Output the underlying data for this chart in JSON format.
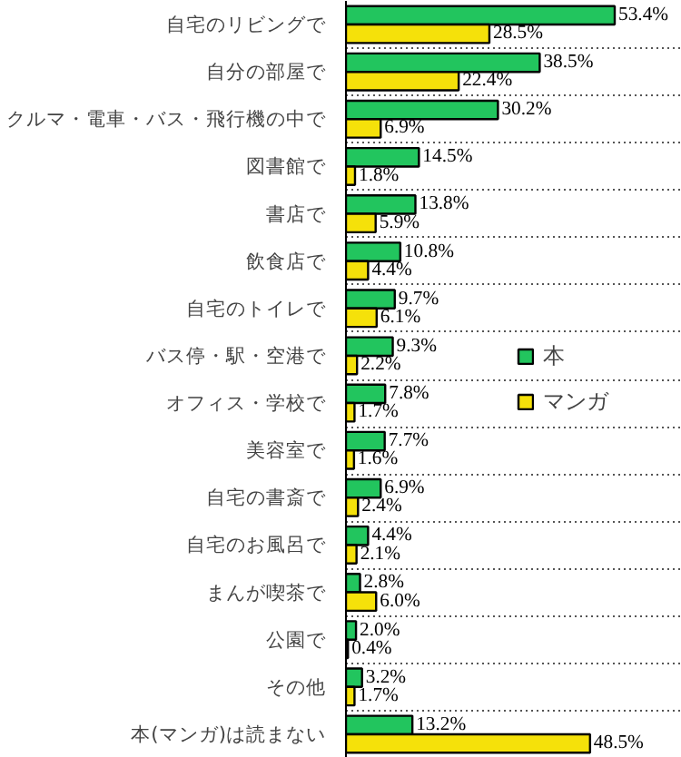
{
  "chart_data": {
    "type": "bar",
    "orientation": "horizontal",
    "categories": [
      "自宅のリビングで",
      "自分の部屋で",
      "クルマ・電車・バス・飛行機の中で",
      "図書館で",
      "書店で",
      "飲食店で",
      "自宅のトイレで",
      "バス停・駅・空港で",
      "オフィス・学校で",
      "美容室で",
      "自宅の書斎で",
      "自宅のお風呂で",
      "まんが喫茶で",
      "公園で",
      "その他",
      "本(マンガ)は読まない"
    ],
    "series": [
      {
        "name": "本",
        "color": "#22c55e",
        "values": [
          53.4,
          38.5,
          30.2,
          14.5,
          13.8,
          10.8,
          9.7,
          9.3,
          7.8,
          7.7,
          6.9,
          4.4,
          2.8,
          2.0,
          3.2,
          13.2
        ],
        "value_labels": [
          "53.4%",
          "38.5%",
          "30.2%",
          "14.5%",
          "13.8%",
          "10.8%",
          "9.7%",
          "9.3%",
          "7.8%",
          "7.7%",
          "6.9%",
          "4.4%",
          "2.8%",
          "2.0%",
          "3.2%",
          "13.2%"
        ]
      },
      {
        "name": "マンガ",
        "color": "#f5e10a",
        "values": [
          28.5,
          22.4,
          6.9,
          1.8,
          5.9,
          4.4,
          6.1,
          2.2,
          1.7,
          1.6,
          2.4,
          2.1,
          6.0,
          0.4,
          1.7,
          48.5
        ],
        "value_labels": [
          "28.5%",
          "22.4%",
          "6.9%",
          "1.8%",
          "5.9%",
          "4.4%",
          "6.1%",
          "2.2%",
          "1.7%",
          "1.6%",
          "2.4%",
          "2.1%",
          "6.0%",
          "0.4%",
          "1.7%",
          "48.5%"
        ]
      }
    ],
    "grid": "y",
    "legend": "right",
    "tick_labels": "y"
  }
}
